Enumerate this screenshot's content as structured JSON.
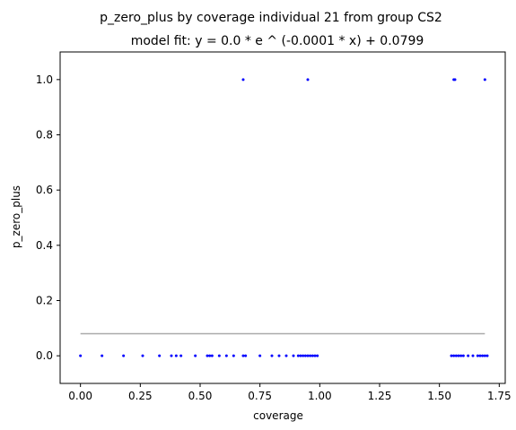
{
  "chart_data": {
    "type": "scatter",
    "title": "p_zero_plus by coverage individual 21 from group CS2",
    "subtitle": "model fit: y = 0.0 * e ^ (-0.0001 * x) + 0.0799",
    "xlabel": "coverage",
    "ylabel": "p_zero_plus",
    "xlim": [
      -0.085,
      1.775
    ],
    "ylim": [
      -0.1,
      1.1
    ],
    "xticks": [
      0.0,
      0.25,
      0.5,
      0.75,
      1.0,
      1.25,
      1.5,
      1.75
    ],
    "xtick_labels": [
      "0.00",
      "0.25",
      "0.50",
      "0.75",
      "1.00",
      "1.25",
      "1.50",
      "1.75"
    ],
    "yticks": [
      0.0,
      0.2,
      0.4,
      0.6,
      0.8,
      1.0
    ],
    "ytick_labels": [
      "0.0",
      "0.2",
      "0.4",
      "0.6",
      "0.8",
      "1.0"
    ],
    "grid": false,
    "legend": "none",
    "colors": {
      "points": "#0000ff",
      "fit_line": "#aaaaaa"
    },
    "series": [
      {
        "kind": "points",
        "points": [
          [
            0.0,
            0.0
          ],
          [
            0.09,
            0.0
          ],
          [
            0.18,
            0.0
          ],
          [
            0.26,
            0.0
          ],
          [
            0.33,
            0.0
          ],
          [
            0.38,
            0.0
          ],
          [
            0.4,
            0.0
          ],
          [
            0.42,
            0.0
          ],
          [
            0.48,
            0.0
          ],
          [
            0.53,
            0.0
          ],
          [
            0.54,
            0.0
          ],
          [
            0.55,
            0.0
          ],
          [
            0.58,
            0.0
          ],
          [
            0.61,
            0.0
          ],
          [
            0.64,
            0.0
          ],
          [
            0.68,
            0.0
          ],
          [
            0.69,
            0.0
          ],
          [
            0.75,
            0.0
          ],
          [
            0.8,
            0.0
          ],
          [
            0.83,
            0.0
          ],
          [
            0.86,
            0.0
          ],
          [
            0.89,
            0.0
          ],
          [
            0.91,
            0.0
          ],
          [
            0.92,
            0.0
          ],
          [
            0.93,
            0.0
          ],
          [
            0.94,
            0.0
          ],
          [
            0.95,
            0.0
          ],
          [
            0.96,
            0.0
          ],
          [
            0.97,
            0.0
          ],
          [
            0.98,
            0.0
          ],
          [
            0.99,
            0.0
          ],
          [
            1.55,
            0.0
          ],
          [
            1.56,
            0.0
          ],
          [
            1.57,
            0.0
          ],
          [
            1.58,
            0.0
          ],
          [
            1.59,
            0.0
          ],
          [
            1.6,
            0.0
          ],
          [
            1.62,
            0.0
          ],
          [
            1.64,
            0.0
          ],
          [
            1.66,
            0.0
          ],
          [
            1.67,
            0.0
          ],
          [
            1.68,
            0.0
          ],
          [
            1.69,
            0.0
          ],
          [
            1.7,
            0.0
          ],
          [
            0.68,
            1.0
          ],
          [
            0.95,
            1.0
          ],
          [
            1.56,
            1.0
          ],
          [
            1.565,
            1.0
          ],
          [
            1.69,
            1.0
          ]
        ]
      },
      {
        "kind": "fit",
        "x": [
          0.0,
          1.69
        ],
        "y": [
          0.0799,
          0.0799
        ]
      }
    ]
  }
}
